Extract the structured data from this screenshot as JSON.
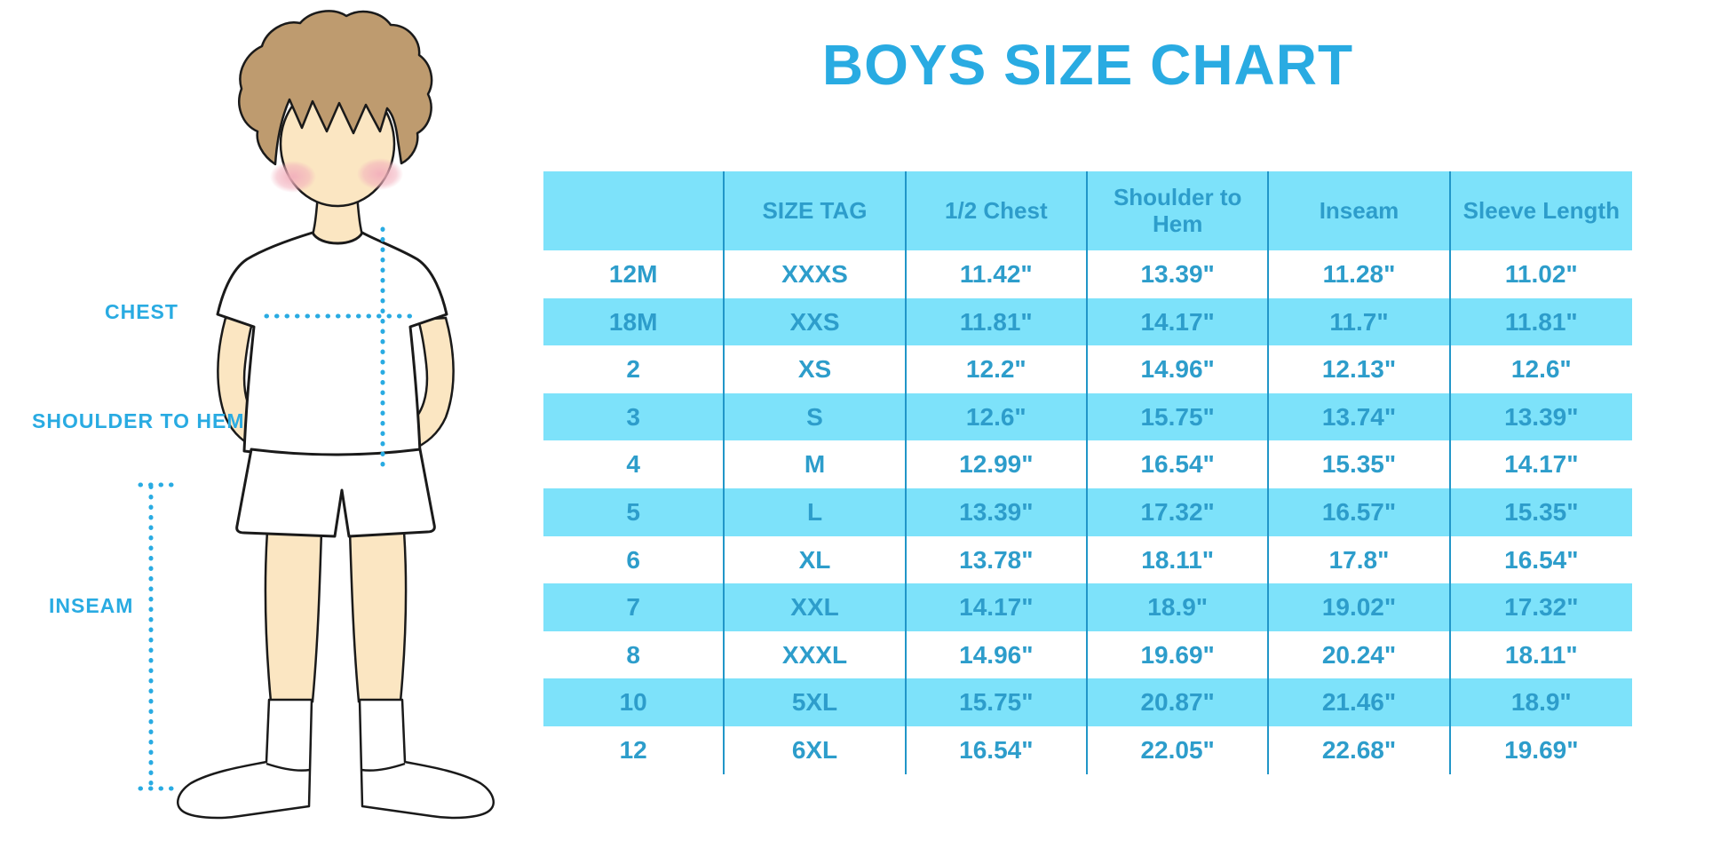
{
  "title": "BOYS SIZE CHART",
  "colors": {
    "accent": "#29ABE2",
    "table_fill": "#7DE2FA",
    "table_line": "#2196C8",
    "table_text": "#2D9DCB",
    "skin": "#FBE6C2",
    "hair": "#BE9B6F",
    "blush": "#F2AFBC"
  },
  "figure_labels": {
    "chest": "CHEST",
    "shoulder_to_hem": "SHOULDER TO HEM",
    "inseam": "INSEAM"
  },
  "chart_data": {
    "type": "table",
    "title": "BOYS SIZE CHART",
    "columns": [
      "",
      "SIZE TAG",
      "1/2 Chest",
      "Shoulder to Hem",
      "Inseam",
      "Sleeve Length"
    ],
    "rows": [
      [
        "12M",
        "XXXS",
        "11.42\"",
        "13.39\"",
        "11.28\"",
        "11.02\""
      ],
      [
        "18M",
        "XXS",
        "11.81\"",
        "14.17\"",
        "11.7\"",
        "11.81\""
      ],
      [
        "2",
        "XS",
        "12.2\"",
        "14.96\"",
        "12.13\"",
        "12.6\""
      ],
      [
        "3",
        "S",
        "12.6\"",
        "15.75\"",
        "13.74\"",
        "13.39\""
      ],
      [
        "4",
        "M",
        "12.99\"",
        "16.54\"",
        "15.35\"",
        "14.17\""
      ],
      [
        "5",
        "L",
        "13.39\"",
        "17.32\"",
        "16.57\"",
        "15.35\""
      ],
      [
        "6",
        "XL",
        "13.78\"",
        "18.11\"",
        "17.8\"",
        "16.54\""
      ],
      [
        "7",
        "XXL",
        "14.17\"",
        "18.9\"",
        "19.02\"",
        "17.32\""
      ],
      [
        "8",
        "XXXL",
        "14.96\"",
        "19.69\"",
        "20.24\"",
        "18.11\""
      ],
      [
        "10",
        "5XL",
        "15.75\"",
        "20.87\"",
        "21.46\"",
        "18.9\""
      ],
      [
        "12",
        "6XL",
        "16.54\"",
        "22.05\"",
        "22.68\"",
        "19.69\""
      ]
    ],
    "striped_rows_zero_based": [
      1,
      3,
      5,
      7,
      9
    ],
    "layout": {
      "grid": false,
      "header_fill": "#7DE2FA",
      "stripe_fill": "#7DE2FA"
    }
  }
}
